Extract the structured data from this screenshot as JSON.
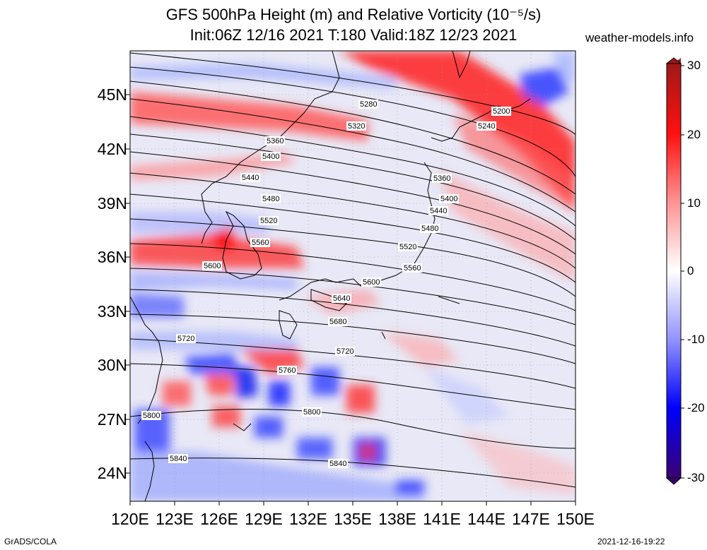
{
  "header": {
    "title_line1": "GFS 500hPa Height (m) and Relative Vorticity (10⁻⁵/s)",
    "title_line2": "Init:06Z 12/16 2021 T:180 Valid:18Z 12/23 2021",
    "site": "weather-models.info"
  },
  "axes": {
    "lat_labels": [
      "45N",
      "42N",
      "39N",
      "36N",
      "33N",
      "30N",
      "27N",
      "24N"
    ],
    "lon_labels": [
      "120E",
      "123E",
      "126E",
      "129E",
      "132E",
      "135E",
      "138E",
      "141E",
      "144E",
      "147E",
      "150E"
    ]
  },
  "colorbar": {
    "labels": [
      "30",
      "20",
      "10",
      "0",
      "-10",
      "-20",
      "-30"
    ],
    "colors": [
      "#b71c1c",
      "#ff0000",
      "#ff8080",
      "#ffffff",
      "#8080ff",
      "#0000ff",
      "#3b0078"
    ]
  },
  "contours": {
    "labels": [
      "5200",
      "5240",
      "5280",
      "5320",
      "5360",
      "5400",
      "5440",
      "5480",
      "5520",
      "5560",
      "5600",
      "5640",
      "5680",
      "5720",
      "5760",
      "5800",
      "5840"
    ]
  },
  "footer": {
    "left": "GrADS/COLA",
    "right": "2021-12-16-19:22"
  }
}
